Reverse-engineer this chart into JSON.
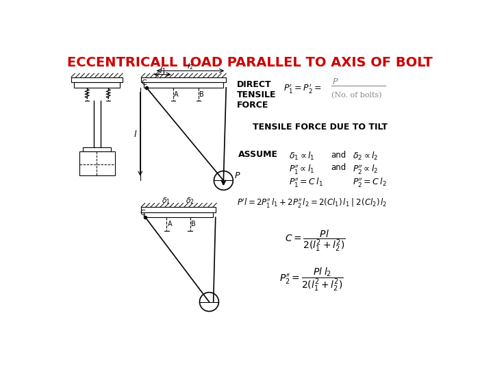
{
  "title": "ECCENTRICALL LOAD PARALLEL TO AXIS OF BOLT",
  "title_color": "#cc0000",
  "bg_color": "#ffffff",
  "label_direct_tensile": "DIRECT\nTENSILE\nFORCE",
  "label_tensile_tilt": "TENSILE FORCE DUE TO TILT",
  "label_assume": "ASSUME"
}
